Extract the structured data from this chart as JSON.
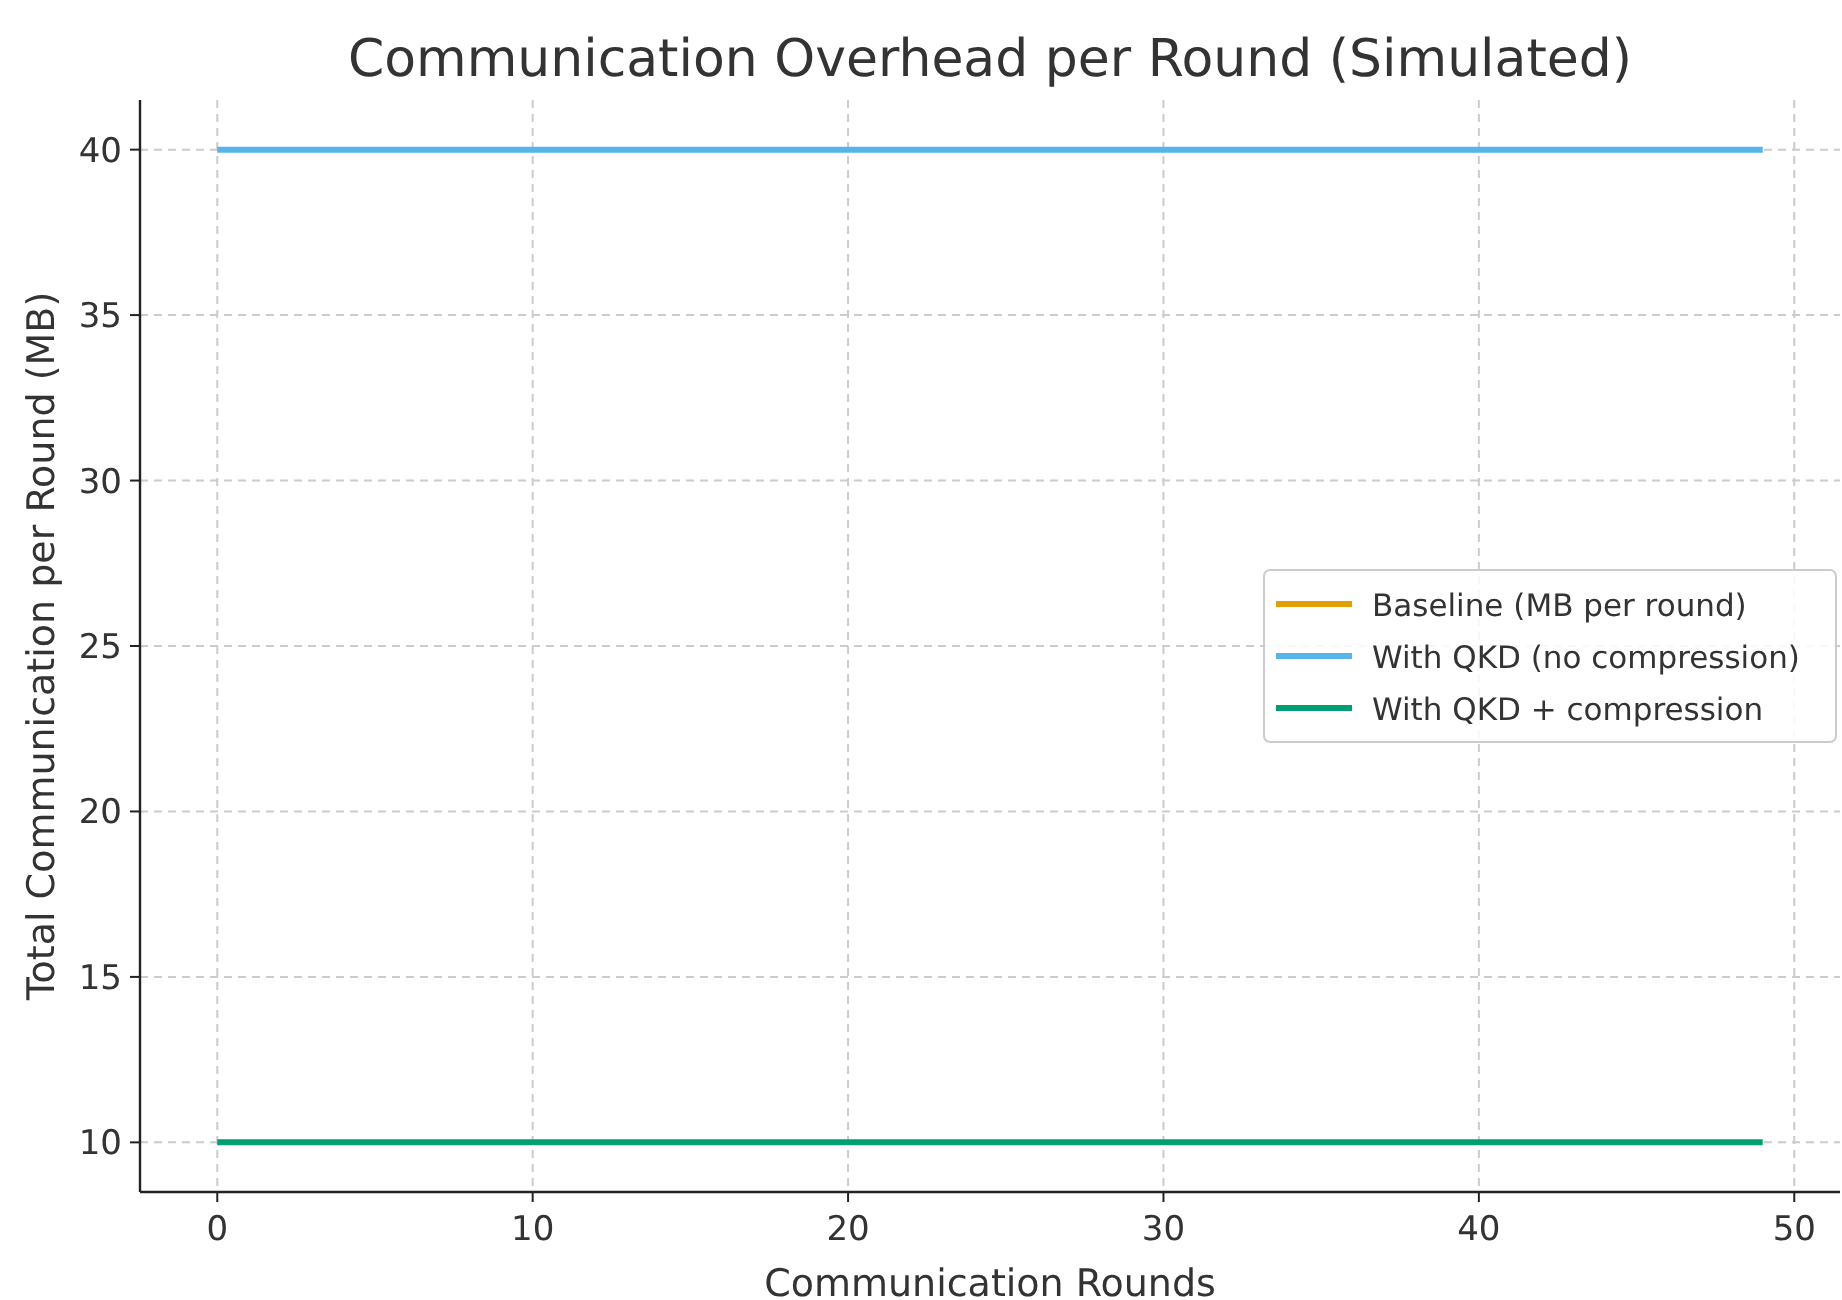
{
  "chart_data": {
    "type": "line",
    "title": "Communication Overhead per Round (Simulated)",
    "xlabel": "Communication Rounds",
    "ylabel": "Total Communication per Round (MB)",
    "x": [
      0,
      49
    ],
    "series": [
      {
        "name": "Baseline (MB per round)",
        "color": "#e69f00",
        "values": [
          null,
          null
        ]
      },
      {
        "name": "With QKD (no compression)",
        "color": "#56b4e9",
        "values": [
          40,
          40
        ]
      },
      {
        "name": "With QKD + compression",
        "color": "#009e73",
        "values": [
          10,
          10
        ]
      }
    ],
    "xlim": [
      -2.45,
      51.45
    ],
    "xticks": [
      0,
      10,
      20,
      30,
      40,
      50
    ],
    "ylim": [
      8.5,
      41.5
    ],
    "yticks": [
      10,
      15,
      20,
      25,
      30,
      35,
      40
    ],
    "grid": true,
    "legend": "right",
    "line_style": "solid"
  }
}
